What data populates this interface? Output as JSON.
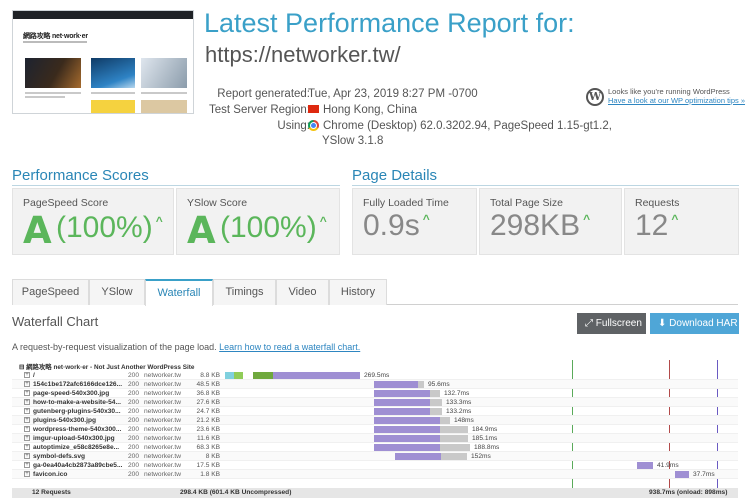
{
  "header": {
    "title": "Latest Performance Report for:",
    "url": "https://networker.tw/",
    "thumbnail_site_title": "網路攻略 net·work·er"
  },
  "meta": {
    "generated_label": "Report generated:",
    "generated_value": "Tue, Apr 23, 2019 8:27 PM -0700",
    "region_label": "Test Server Region:",
    "region_value": "Hong Kong, China",
    "using_label": "Using:",
    "using_value_line1": "Chrome (Desktop) 62.0.3202.94, PageSpeed 1.15-gt1.2,",
    "using_value_line2": "YSlow 3.1.8"
  },
  "wp_note": {
    "line1": "Looks like you're running WordPress",
    "link": "Have a look at our WP optimization tips »"
  },
  "performance": {
    "section_title": "Performance Scores",
    "pagespeed_label": "PageSpeed Score",
    "pagespeed_grade": "A",
    "pagespeed_pct": "(100%)",
    "yslow_label": "YSlow Score",
    "yslow_grade": "A",
    "yslow_pct": "(100%)"
  },
  "details": {
    "section_title": "Page Details",
    "load_label": "Fully Loaded Time",
    "load_value": "0.9s",
    "size_label": "Total Page Size",
    "size_value": "298KB",
    "requests_label": "Requests",
    "requests_value": "12"
  },
  "tabs": [
    "PageSpeed",
    "YSlow",
    "Waterfall",
    "Timings",
    "Video",
    "History"
  ],
  "active_tab": "Waterfall",
  "waterfall": {
    "title": "Waterfall Chart",
    "fullscreen_label": "Fullscreen",
    "download_label": "Download HAR",
    "intro_text": "A request-by-request visualization of the page load.",
    "intro_link": "Learn how to read a waterfall chart.",
    "page_title": "網路攻略 net·work·er - Not Just Another WordPress Site",
    "rows": [
      {
        "url": "/",
        "status": "200",
        "domain": "networker.tw",
        "size": "8.8 KB",
        "time": "269.5ms"
      },
      {
        "url": "154c1be172afc6166dce126...",
        "status": "200",
        "domain": "networker.tw",
        "size": "48.5 KB",
        "time": "95.6ms"
      },
      {
        "url": "page-speed-540x300.jpg",
        "status": "200",
        "domain": "networker.tw",
        "size": "36.8 KB",
        "time": "132.7ms"
      },
      {
        "url": "how-to-make-a-website-54...",
        "status": "200",
        "domain": "networker.tw",
        "size": "27.6 KB",
        "time": "133.3ms"
      },
      {
        "url": "gutenberg-plugins-540x30...",
        "status": "200",
        "domain": "networker.tw",
        "size": "24.7 KB",
        "time": "133.2ms"
      },
      {
        "url": "plugins-540x300.jpg",
        "status": "200",
        "domain": "networker.tw",
        "size": "21.2 KB",
        "time": "148ms"
      },
      {
        "url": "wordpress-theme-540x300...",
        "status": "200",
        "domain": "networker.tw",
        "size": "23.6 KB",
        "time": "184.9ms"
      },
      {
        "url": "imgur-upload-540x300.jpg",
        "status": "200",
        "domain": "networker.tw",
        "size": "11.6 KB",
        "time": "185.1ms"
      },
      {
        "url": "autoptimize_e58c8265e8e...",
        "status": "200",
        "domain": "networker.tw",
        "size": "68.3 KB",
        "time": "188.8ms"
      },
      {
        "url": "symbol-defs.svg",
        "status": "200",
        "domain": "networker.tw",
        "size": "8 KB",
        "time": "152ms"
      },
      {
        "url": "ga-0ea40a4cb2873a89cbe5...",
        "status": "200",
        "domain": "networker.tw",
        "size": "17.5 KB",
        "time": "41.9ms"
      },
      {
        "url": "favicon.ico",
        "status": "200",
        "domain": "networker.tw",
        "size": "1.8 KB",
        "time": "37.7ms"
      }
    ],
    "footer": {
      "requests": "12 Requests",
      "size": "298.4 KB (601.4 KB Uncompressed)",
      "time": "938.7ms (onload: 898ms)"
    }
  },
  "colors": {
    "accent": "#3aa0c8",
    "grade_green": "#5bb65b",
    "wait_bar": "#9f8fd3",
    "download_bar": "#c9c9c9"
  }
}
